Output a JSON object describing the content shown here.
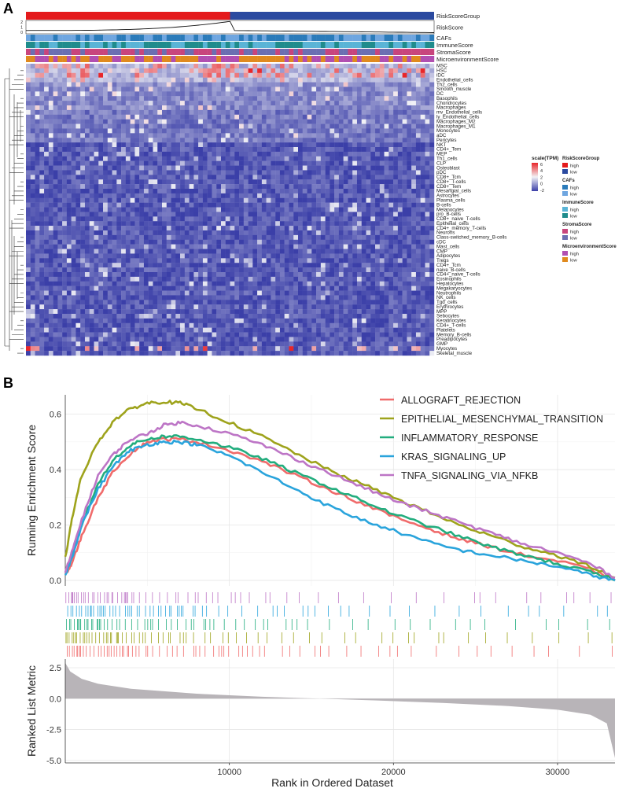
{
  "panels": {
    "a": "A",
    "b": "B"
  },
  "chart_data": [
    {
      "type": "heatmap",
      "panel": "A",
      "annotation_tracks": [
        "RiskScoreGroup",
        "RiskScore",
        "CAFs",
        "ImmuneScore",
        "StromaScore",
        "MicroenvironmentScore"
      ],
      "riskscore_axis_ticks": [
        "2",
        "1",
        "0"
      ],
      "rows": [
        "MSC",
        "HSC",
        "iDC",
        "Endothelial_cells",
        "Th2_cells",
        "Smooth_muscle",
        "DC",
        "Basophils",
        "Chondrocytes",
        "Macrophages",
        "mv_Endothelial_cells",
        "ly_Endothelial_cells",
        "Macrophages_M2",
        "Macrophages_M1",
        "Monocytes",
        "aDC",
        "Pericytes",
        "NKT",
        "CD4+_Tem",
        "MEP",
        "Th1_cells",
        "CLP",
        "Osteoblast",
        "pDC",
        "CD8+_Tcm",
        "CD8+_T-cells",
        "CD8+_Tem",
        "Mesangial_cells",
        "Astrocytes",
        "Plasma_cells",
        "B-cells",
        "Melanocytes",
        "pro_B-cells",
        "CD8+_naive_T-cells",
        "Epithelial_cells",
        "CD4+_memory_T-cells",
        "Neurons",
        "Class-switched_memory_B-cells",
        "cDC",
        "Mast_cells",
        "CMP",
        "Adipocytes",
        "Tregs",
        "CD4+_Tcm",
        "naive_B-cells",
        "CD4+_naive_T-cells",
        "Eosinophils",
        "Hepatocytes",
        "Megakaryocytes",
        "Neutrophils",
        "NK_cells",
        "Tgd_cells",
        "Erythrocytes",
        "MPP",
        "Sebocytes",
        "Keratinocytes",
        "CD4+_T-cells",
        "Platelets",
        "Memory_B-cells",
        "Preadipocytes",
        "GMP",
        "Myocytes",
        "Skeletal_muscle"
      ],
      "colorscale": {
        "title": "scale(TPM)",
        "ticks": [
          "6",
          "4",
          "2",
          "0",
          "-2"
        ],
        "min": -2,
        "max": 6,
        "low": "#3b3fa8",
        "mid": "#f2f2f6",
        "high": "#e8262a"
      },
      "legends": [
        {
          "title": "RiskScoreGroup",
          "entries": [
            {
              "label": "high",
              "color": "#e41a1c"
            },
            {
              "label": "low",
              "color": "#2b4aa0"
            }
          ]
        },
        {
          "title": "CAFs",
          "entries": [
            {
              "label": "high",
              "color": "#2b7bba"
            },
            {
              "label": "low",
              "color": "#6fa6e0"
            }
          ]
        },
        {
          "title": "ImmuneScore",
          "entries": [
            {
              "label": "high",
              "color": "#5ab4d6"
            },
            {
              "label": "low",
              "color": "#1f8c8c"
            }
          ]
        },
        {
          "title": "StromaScore",
          "entries": [
            {
              "label": "high",
              "color": "#c8457d"
            },
            {
              "label": "low",
              "color": "#6b6fb2"
            }
          ]
        },
        {
          "title": "MicroenvironmentScore",
          "entries": [
            {
              "label": "high",
              "color": "#b14fb1"
            },
            {
              "label": "low",
              "color": "#e08a1e"
            }
          ]
        }
      ]
    },
    {
      "type": "line",
      "panel": "B",
      "ylabel": "Running Enrichment Score",
      "xlabel": "Rank in Ordered Dataset",
      "x_ticks": [
        "10000",
        "20000",
        "30000"
      ],
      "y_ticks": [
        "0.0",
        "0.2",
        "0.4",
        "0.6"
      ],
      "xlim": [
        0,
        33500
      ],
      "ylim": [
        -0.02,
        0.67
      ],
      "series": [
        {
          "name": "ALLOGRAFT_REJECTION",
          "color": "#f06b6b",
          "x": [
            0,
            400,
            1000,
            2000,
            3000,
            4000,
            5000,
            6000,
            7000,
            8000,
            10000,
            12000,
            14000,
            16000,
            18000,
            20000,
            22000,
            24000,
            26000,
            28000,
            30000,
            32000,
            33500
          ],
          "y": [
            0.02,
            0.06,
            0.16,
            0.3,
            0.4,
            0.46,
            0.5,
            0.51,
            0.51,
            0.5,
            0.47,
            0.43,
            0.38,
            0.33,
            0.28,
            0.23,
            0.19,
            0.15,
            0.12,
            0.09,
            0.07,
            0.04,
            0.0
          ]
        },
        {
          "name": "EPITHELIAL_MESENCHYMAL_TRANSITION",
          "color": "#9ea31c",
          "x": [
            0,
            400,
            1000,
            2000,
            3000,
            4000,
            5000,
            6000,
            7000,
            8000,
            10000,
            12000,
            14000,
            16000,
            18000,
            20000,
            22000,
            24000,
            26000,
            28000,
            30000,
            32000,
            33500
          ],
          "y": [
            0.08,
            0.22,
            0.38,
            0.5,
            0.58,
            0.62,
            0.64,
            0.645,
            0.64,
            0.62,
            0.57,
            0.52,
            0.46,
            0.4,
            0.35,
            0.3,
            0.25,
            0.2,
            0.16,
            0.12,
            0.09,
            0.05,
            0.01
          ]
        },
        {
          "name": "INFLAMMATORY_RESPONSE",
          "color": "#22ad7e",
          "x": [
            0,
            400,
            1000,
            2000,
            3000,
            4000,
            5000,
            6000,
            7000,
            8000,
            10000,
            12000,
            14000,
            16000,
            18000,
            20000,
            22000,
            24000,
            26000,
            28000,
            30000,
            32000,
            33500
          ],
          "y": [
            0.03,
            0.09,
            0.2,
            0.35,
            0.44,
            0.49,
            0.51,
            0.52,
            0.52,
            0.51,
            0.48,
            0.44,
            0.39,
            0.34,
            0.29,
            0.24,
            0.2,
            0.16,
            0.12,
            0.09,
            0.06,
            0.03,
            0.0
          ]
        },
        {
          "name": "KRAS_SIGNALING_UP",
          "color": "#2aa4dc",
          "x": [
            0,
            400,
            1000,
            2000,
            3000,
            4000,
            5000,
            6000,
            7000,
            8000,
            10000,
            12000,
            14000,
            16000,
            18000,
            20000,
            22000,
            24000,
            26000,
            28000,
            30000,
            32000,
            33500
          ],
          "y": [
            0.02,
            0.08,
            0.2,
            0.33,
            0.42,
            0.47,
            0.49,
            0.5,
            0.5,
            0.49,
            0.45,
            0.39,
            0.33,
            0.27,
            0.22,
            0.18,
            0.14,
            0.11,
            0.09,
            0.07,
            0.05,
            0.02,
            0.0
          ]
        },
        {
          "name": "TNFA_SIGNALING_VIA_NFKB",
          "color": "#bd75c6",
          "x": [
            0,
            400,
            1000,
            2000,
            3000,
            4000,
            5000,
            6000,
            7000,
            8000,
            10000,
            12000,
            14000,
            16000,
            18000,
            20000,
            22000,
            24000,
            26000,
            28000,
            30000,
            32000,
            33500
          ],
          "y": [
            0.03,
            0.1,
            0.22,
            0.38,
            0.46,
            0.51,
            0.53,
            0.56,
            0.57,
            0.56,
            0.53,
            0.49,
            0.44,
            0.39,
            0.34,
            0.29,
            0.25,
            0.21,
            0.17,
            0.13,
            0.1,
            0.06,
            0.01
          ]
        }
      ]
    },
    {
      "type": "area",
      "panel": "B-lower",
      "ylabel": "Ranked List Metric",
      "y_ticks": [
        "2.5",
        "0.0",
        "-2.5",
        "-5.0"
      ],
      "ylim": [
        -5.2,
        3.2
      ],
      "x": [
        0,
        300,
        1000,
        2000,
        4000,
        8000,
        12000,
        15500,
        19000,
        23000,
        27000,
        30000,
        32000,
        33000,
        33500
      ],
      "y": [
        2.9,
        2.2,
        1.6,
        1.2,
        0.8,
        0.4,
        0.15,
        0.0,
        -0.15,
        -0.35,
        -0.6,
        -0.9,
        -1.3,
        -2.0,
        -4.8
      ],
      "fill": "#b8b4b8"
    }
  ]
}
